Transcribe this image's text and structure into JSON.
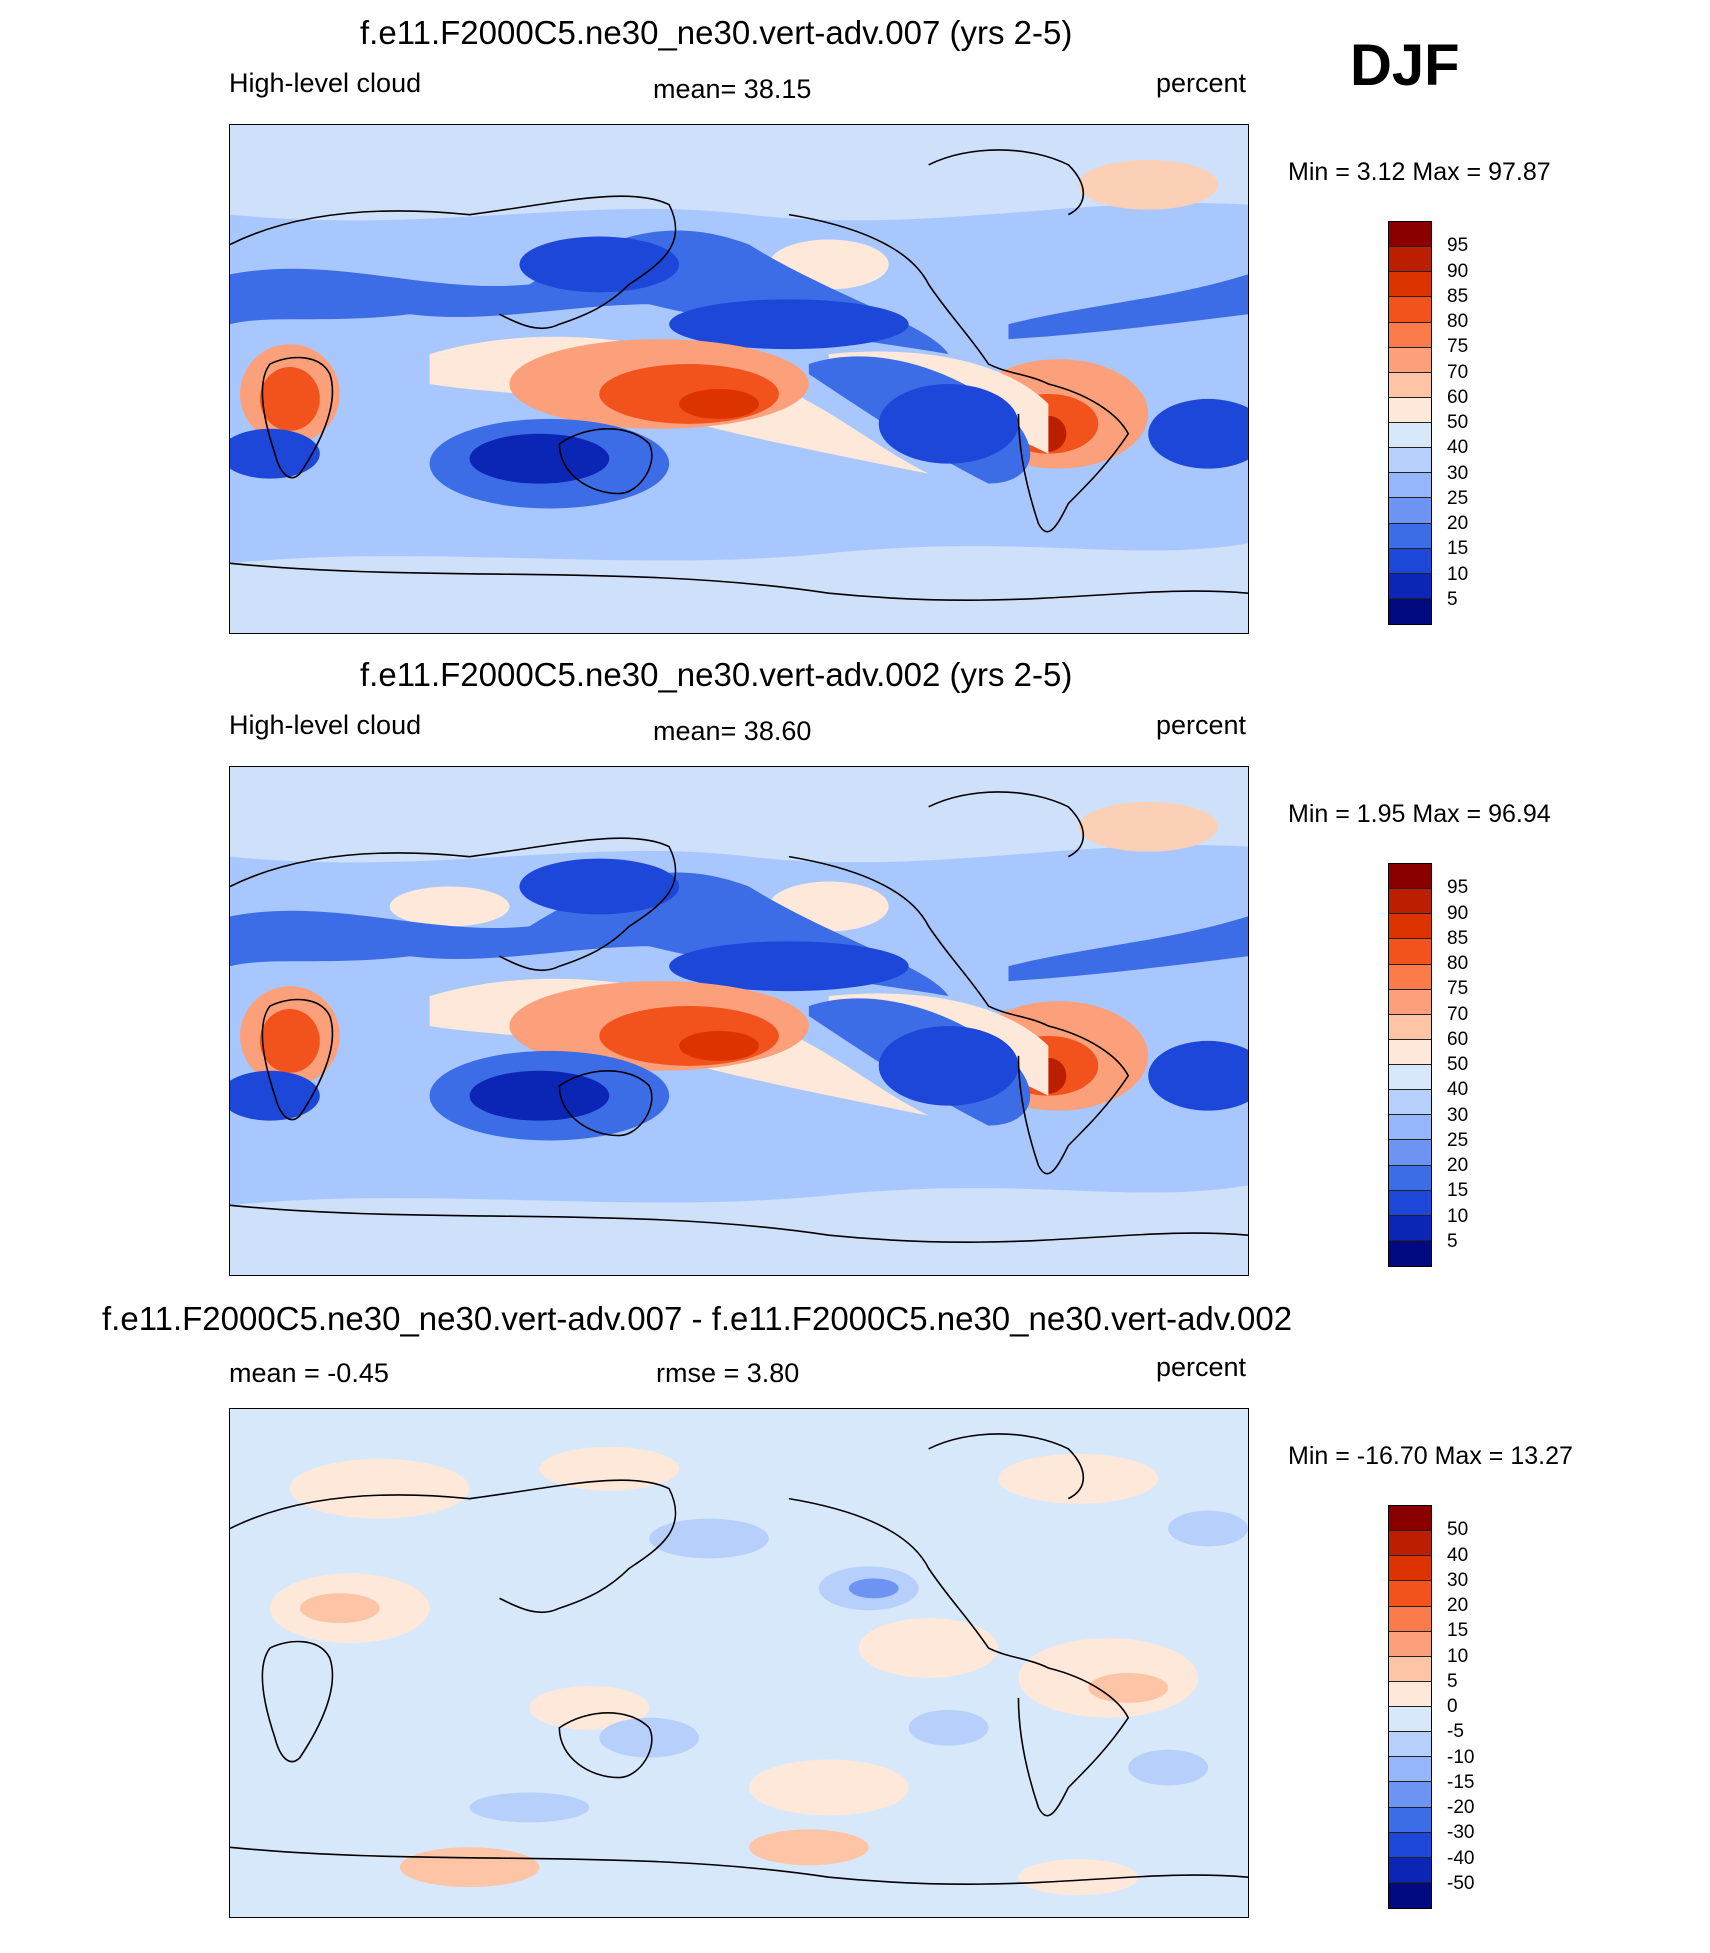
{
  "season": "DJF",
  "panels": [
    {
      "title": "f.e11.F2000C5.ne30_ne30.vert-adv.007 (yrs 2-5)",
      "left_label": "High-level cloud",
      "center_label": "mean=  38.15",
      "right_label": "percent",
      "minmax": "Min =    3.12 Max =  97.87"
    },
    {
      "title": "f.e11.F2000C5.ne30_ne30.vert-adv.002 (yrs 2-5)",
      "left_label": "High-level cloud",
      "center_label": "mean=  38.60",
      "right_label": "percent",
      "minmax": "Min =    1.95 Max =  96.94"
    },
    {
      "title": "f.e11.F2000C5.ne30_ne30.vert-adv.007 - f.e11.F2000C5.ne30_ne30.vert-adv.002",
      "left_label": "mean =  -0.45",
      "center_label": "rmse =   3.80",
      "right_label": "percent",
      "minmax": "Min = -16.70 Max =  13.27"
    }
  ],
  "colorbars": {
    "field": {
      "labels": [
        "95",
        "90",
        "85",
        "80",
        "75",
        "70",
        "60",
        "50",
        "40",
        "30",
        "25",
        "20",
        "15",
        "10",
        "5"
      ],
      "colors": [
        "#8a0000",
        "#bb1e00",
        "#dd3300",
        "#f2521b",
        "#fa7a4a",
        "#fca07c",
        "#fdc4a6",
        "#fde8d9",
        "#d8e8fb",
        "#b7d0fb",
        "#95b6fa",
        "#6d94f3",
        "#3d6de6",
        "#1d47d8",
        "#0b26b4",
        "#020a80"
      ]
    },
    "diff": {
      "labels": [
        "50",
        "40",
        "30",
        "20",
        "15",
        "10",
        "5",
        "0",
        "-5",
        "-10",
        "-15",
        "-20",
        "-30",
        "-40",
        "-50"
      ],
      "colors": [
        "#8a0000",
        "#bb1e00",
        "#dd3300",
        "#f2521b",
        "#fa7a4a",
        "#fca07c",
        "#fdc4a6",
        "#fde8d9",
        "#d8e8fb",
        "#b7d0fb",
        "#95b6fa",
        "#6d94f3",
        "#3d6de6",
        "#1d47d8",
        "#0b26b4",
        "#020a80"
      ]
    }
  }
}
